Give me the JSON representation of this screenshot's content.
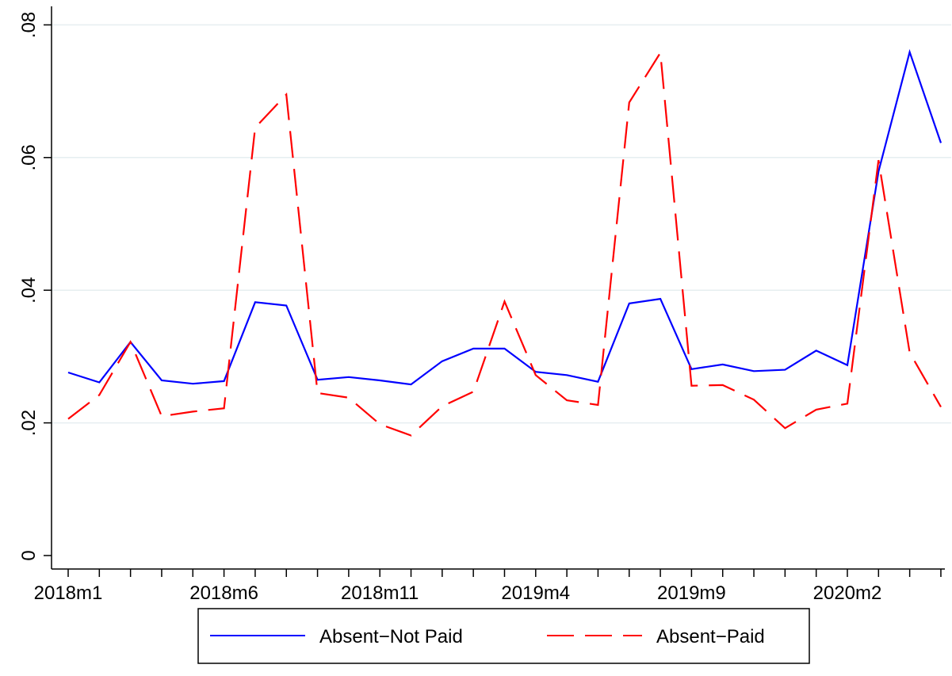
{
  "chart_data": {
    "type": "line",
    "x": [
      "2018m1",
      "2018m2",
      "2018m3",
      "2018m4",
      "2018m5",
      "2018m6",
      "2018m7",
      "2018m8",
      "2018m9",
      "2018m10",
      "2018m11",
      "2018m12",
      "2019m1",
      "2019m2",
      "2019m3",
      "2019m4",
      "2019m5",
      "2019m6",
      "2019m7",
      "2019m8",
      "2019m9",
      "2019m10",
      "2019m11",
      "2019m12",
      "2020m1",
      "2020m2",
      "2020m3",
      "2020m4",
      "2020m5"
    ],
    "x_ticks": [
      "2018m1",
      "2018m6",
      "2018m11",
      "2019m4",
      "2019m9",
      "2020m2"
    ],
    "ylim": [
      0,
      0.08
    ],
    "y_ticks": [
      {
        "value": 0,
        "label": "0"
      },
      {
        "value": 0.02,
        "label": ".02"
      },
      {
        "value": 0.04,
        "label": ".04"
      },
      {
        "value": 0.06,
        "label": ".06"
      },
      {
        "value": 0.08,
        "label": ".08"
      }
    ],
    "grid": true,
    "legend_position": "bottom",
    "series": [
      {
        "name": "Absent−Not Paid",
        "color": "#0000ff",
        "style": "solid",
        "values": [
          0.0276,
          0.0261,
          0.0322,
          0.0264,
          0.0259,
          0.0263,
          0.0382,
          0.0377,
          0.0265,
          0.0269,
          0.0264,
          0.0258,
          0.0293,
          0.0312,
          0.0312,
          0.0277,
          0.0272,
          0.0262,
          0.038,
          0.0387,
          0.0281,
          0.0288,
          0.0278,
          0.028,
          0.0309,
          0.0287,
          0.0579,
          0.0759,
          0.0622
        ]
      },
      {
        "name": "Absent−Paid",
        "color": "#ff0000",
        "style": "dashed",
        "values": [
          0.0206,
          0.0242,
          0.0322,
          0.021,
          0.0217,
          0.0222,
          0.0645,
          0.0695,
          0.0245,
          0.0238,
          0.0198,
          0.0181,
          0.0225,
          0.0247,
          0.0383,
          0.0272,
          0.0234,
          0.0227,
          0.0683,
          0.0758,
          0.0256,
          0.0257,
          0.0235,
          0.0192,
          0.022,
          0.0229,
          0.0596,
          0.0306,
          0.0224
        ]
      }
    ]
  }
}
